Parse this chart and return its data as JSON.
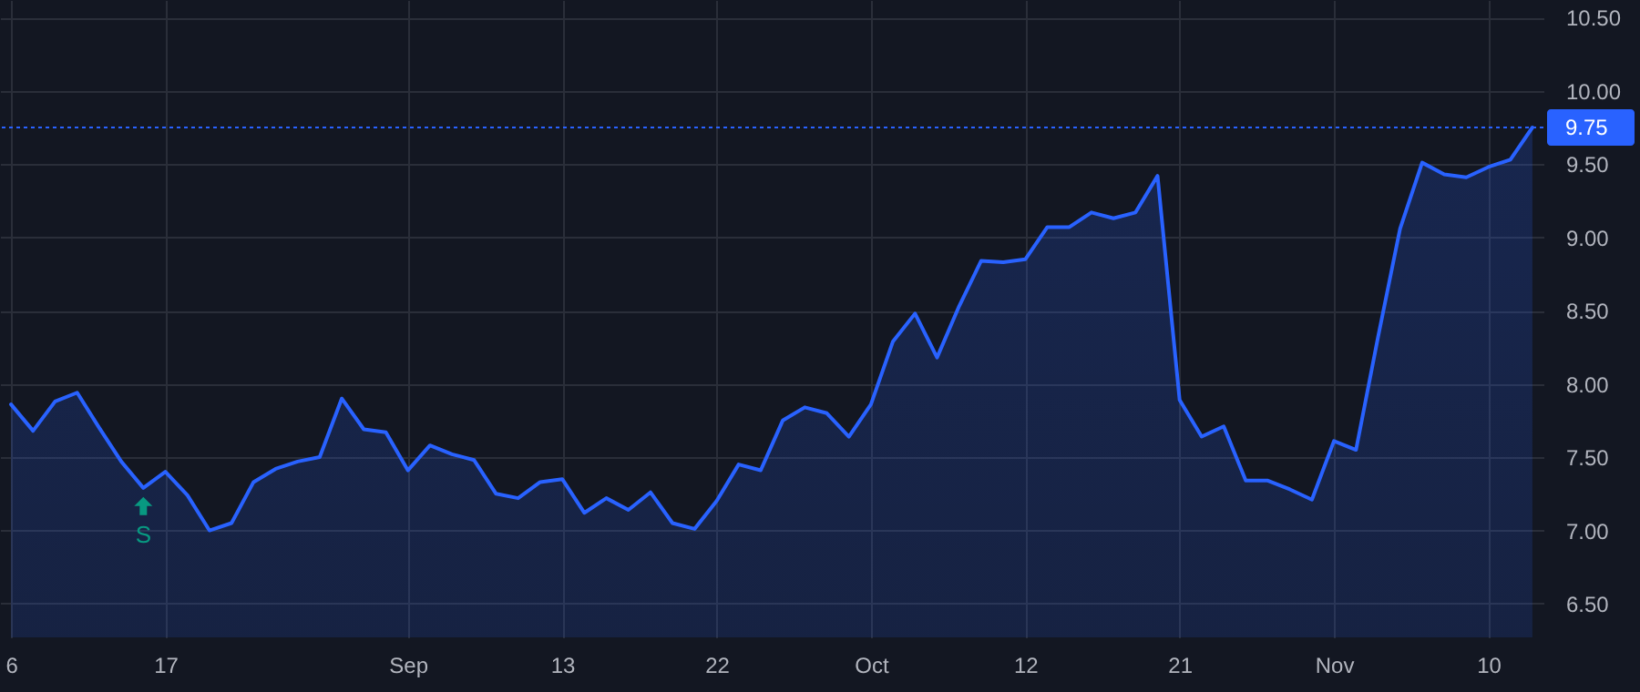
{
  "chart_data": {
    "type": "area",
    "categories": [
      "6",
      null,
      null,
      null,
      null,
      null,
      null,
      "17",
      null,
      null,
      null,
      null,
      null,
      null,
      null,
      null,
      null,
      null,
      "Sep",
      null,
      null,
      null,
      null,
      null,
      null,
      "13",
      null,
      null,
      null,
      null,
      null,
      null,
      "22",
      null,
      null,
      null,
      null,
      null,
      null,
      "Oct",
      null,
      null,
      null,
      null,
      null,
      null,
      "12",
      null,
      null,
      null,
      null,
      null,
      null,
      "21",
      null,
      null,
      null,
      null,
      null,
      null,
      "Nov",
      null,
      null,
      null,
      null,
      null,
      null,
      "10",
      null,
      null
    ],
    "series": [
      {
        "color": "#2962ff",
        "values": [
          7.86,
          7.68,
          7.88,
          7.94,
          7.7,
          7.47,
          7.29,
          7.4,
          7.24,
          7.0,
          7.05,
          7.33,
          7.42,
          7.47,
          7.5,
          7.9,
          7.69,
          7.67,
          7.41,
          7.58,
          7.52,
          7.48,
          7.25,
          7.22,
          7.33,
          7.35,
          7.12,
          7.22,
          7.14,
          7.26,
          7.05,
          7.01,
          7.2,
          7.45,
          7.41,
          7.75,
          7.84,
          7.8,
          7.64,
          7.86,
          8.29,
          8.48,
          8.18,
          8.53,
          8.84,
          8.83,
          8.85,
          9.07,
          9.07,
          9.17,
          9.13,
          9.17,
          9.42,
          7.89,
          7.64,
          7.71,
          7.34,
          7.34,
          7.28,
          7.21,
          7.61,
          7.55,
          8.32,
          9.06,
          9.51,
          9.43,
          9.41,
          9.48,
          9.53,
          9.75
        ]
      }
    ],
    "ylim": [
      6.27,
      10.62
    ],
    "yticks": [
      {
        "value": 6.5,
        "label": "6.50"
      },
      {
        "value": 7,
        "label": "7.00"
      },
      {
        "value": 7.5,
        "label": "7.50"
      },
      {
        "value": 8,
        "label": "8.00"
      },
      {
        "value": 8.5,
        "label": "8.50"
      },
      {
        "value": 9,
        "label": "9.00"
      },
      {
        "value": 9.5,
        "label": "9.50"
      },
      {
        "value": 10,
        "label": "10.00"
      },
      {
        "value": 10.5,
        "label": "10.50"
      }
    ],
    "ref_lines": [
      {
        "axis": "y",
        "value": 9.75,
        "label": "9.75",
        "color": "#2962ff",
        "line_style": "dotted"
      }
    ],
    "annotations": [
      {
        "text": "S",
        "y": 7.29
      }
    ],
    "grid": true
  }
}
